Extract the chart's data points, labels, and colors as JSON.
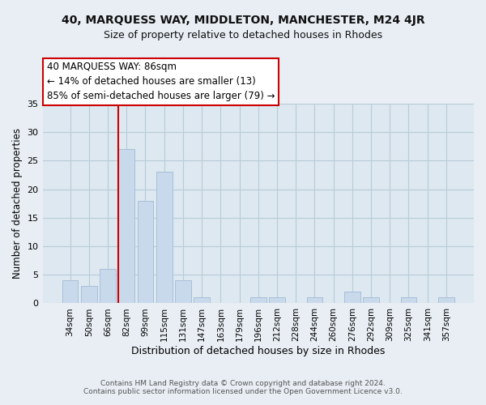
{
  "title1": "40, MARQUESS WAY, MIDDLETON, MANCHESTER, M24 4JR",
  "title2": "Size of property relative to detached houses in Rhodes",
  "xlabel": "Distribution of detached houses by size in Rhodes",
  "ylabel": "Number of detached properties",
  "footer1": "Contains HM Land Registry data © Crown copyright and database right 2024.",
  "footer2": "Contains public sector information licensed under the Open Government Licence v3.0.",
  "bar_labels": [
    "34sqm",
    "50sqm",
    "66sqm",
    "82sqm",
    "99sqm",
    "115sqm",
    "131sqm",
    "147sqm",
    "163sqm",
    "179sqm",
    "196sqm",
    "212sqm",
    "228sqm",
    "244sqm",
    "260sqm",
    "276sqm",
    "292sqm",
    "309sqm",
    "325sqm",
    "341sqm",
    "357sqm"
  ],
  "bar_values": [
    4,
    3,
    6,
    27,
    18,
    23,
    4,
    1,
    0,
    0,
    1,
    1,
    0,
    1,
    0,
    2,
    1,
    0,
    1,
    0,
    1
  ],
  "bar_color": "#c9d9ec",
  "bar_edge_color": "#a8c0d8",
  "vline_index": 3,
  "vline_color": "#cc0000",
  "annotation_title": "40 MARQUESS WAY: 86sqm",
  "annotation_line1": "← 14% of detached houses are smaller (13)",
  "annotation_line2": "85% of semi-detached houses are larger (79) →",
  "annotation_box_edge_color": "#cc0000",
  "annotation_box_bg": "#ffffff",
  "ylim": [
    0,
    35
  ],
  "yticks": [
    0,
    5,
    10,
    15,
    20,
    25,
    30,
    35
  ],
  "background_color": "#e8eef4",
  "plot_bg_color": "#dde8f0",
  "grid_color": "#b8ccd8",
  "title1_fontsize": 10,
  "title2_fontsize": 9
}
